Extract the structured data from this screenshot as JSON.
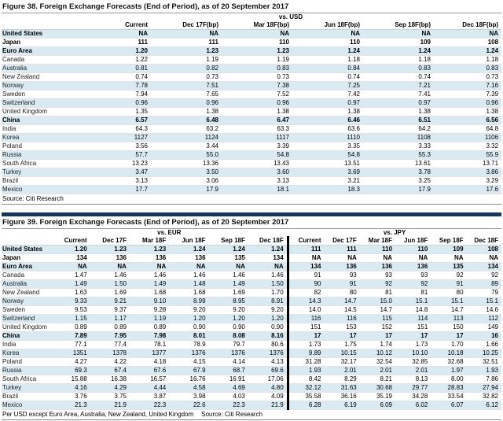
{
  "colors": {
    "stripe_blue": "#d9eaf3",
    "navy_bar": "#17365d"
  },
  "figure38": {
    "title": "Figure 38. Foreign Exchange Forecasts (End of Period), as of 20 September 2017",
    "group_label": "vs. USD",
    "columns": [
      "Current",
      "Dec 17F(bp)",
      "Mar 18F(bp)",
      "Jun 18F(bp)",
      "Sep 18F(bp)",
      "Dec 18F(bp)"
    ],
    "rows": [
      {
        "label": "United States",
        "bold": true,
        "values": [
          "NA",
          "NA",
          "NA",
          "NA",
          "NA",
          "NA"
        ]
      },
      {
        "label": "Japan",
        "bold": true,
        "values": [
          "111",
          "111",
          "110",
          "110",
          "109",
          "108"
        ]
      },
      {
        "label": "Euro Area",
        "bold": true,
        "values": [
          "1.20",
          "1.23",
          "1.23",
          "1.24",
          "1.24",
          "1.24"
        ]
      },
      {
        "label": "Canada",
        "bold": false,
        "values": [
          "1.22",
          "1.19",
          "1.19",
          "1.18",
          "1.18",
          "1.18"
        ]
      },
      {
        "label": "Australia",
        "bold": false,
        "values": [
          "0.81",
          "0.82",
          "0.83",
          "0.84",
          "0.83",
          "0.83"
        ]
      },
      {
        "label": "New Zealand",
        "bold": false,
        "values": [
          "0.74",
          "0.73",
          "0.73",
          "0.74",
          "0.74",
          "0.73"
        ]
      },
      {
        "label": "Norway",
        "bold": false,
        "values": [
          "7.78",
          "7.51",
          "7.38",
          "7.25",
          "7.21",
          "7.16"
        ]
      },
      {
        "label": "Sweden",
        "bold": false,
        "values": [
          "7.94",
          "7.65",
          "7.52",
          "7.42",
          "7.41",
          "7.39"
        ]
      },
      {
        "label": "Switzerland",
        "bold": false,
        "values": [
          "0.96",
          "0.96",
          "0.96",
          "0.97",
          "0.97",
          "0.96"
        ]
      },
      {
        "label": "United Kingdom",
        "bold": false,
        "values": [
          "1.35",
          "1.38",
          "1.38",
          "1.38",
          "1.38",
          "1.38"
        ]
      },
      {
        "label": "China",
        "bold": true,
        "values": [
          "6.57",
          "6.48",
          "6.47",
          "6.46",
          "6.51",
          "6.56"
        ]
      },
      {
        "label": "India",
        "bold": false,
        "values": [
          "64.3",
          "63.2",
          "63.3",
          "63.6",
          "64.2",
          "64.8"
        ]
      },
      {
        "label": "Korea",
        "bold": false,
        "values": [
          "1127",
          "1124",
          "1117",
          "1110",
          "1108",
          "1106"
        ]
      },
      {
        "label": "Poland",
        "bold": false,
        "values": [
          "3.56",
          "3.44",
          "3.39",
          "3.35",
          "3.33",
          "3.32"
        ]
      },
      {
        "label": "Russia",
        "bold": false,
        "values": [
          "57.7",
          "55.0",
          "54.8",
          "54.8",
          "55.3",
          "55.9"
        ]
      },
      {
        "label": "South Africa",
        "bold": false,
        "values": [
          "13.23",
          "13.36",
          "13.43",
          "13.51",
          "13.61",
          "13.71"
        ]
      },
      {
        "label": "Turkey",
        "bold": false,
        "values": [
          "3.47",
          "3.50",
          "3.60",
          "3.69",
          "3.78",
          "3.86"
        ]
      },
      {
        "label": "Brazil",
        "bold": false,
        "values": [
          "3.13",
          "3.06",
          "3.13",
          "3.21",
          "3.25",
          "3.29"
        ]
      },
      {
        "label": "Mexico",
        "bold": false,
        "values": [
          "17.7",
          "17.9",
          "18.1",
          "18.3",
          "17.9",
          "17.6"
        ]
      }
    ],
    "source": "Source: Citi Research"
  },
  "figure39": {
    "title": "Figure 39. Foreign Exchange Forecasts (End of Period), as of 20 September 2017",
    "group_labels": [
      "vs. EUR",
      "vs. JPY"
    ],
    "columns": [
      "Current",
      "Dec 17F",
      "Mar 18F",
      "Jun 18F",
      "Sep 18F",
      "Dec 18F",
      "Current",
      "Dec 17F",
      "Mar 18F",
      "Jun 18F",
      "Sep 18F",
      "Dec 18F"
    ],
    "rows": [
      {
        "label": "United States",
        "bold": true,
        "values": [
          "1.20",
          "1.23",
          "1.23",
          "1.24",
          "1.24",
          "1.24",
          "111",
          "111",
          "110",
          "110",
          "109",
          "108"
        ]
      },
      {
        "label": "Japan",
        "bold": true,
        "values": [
          "134",
          "136",
          "136",
          "136",
          "135",
          "134",
          "NA",
          "NA",
          "NA",
          "NA",
          "NA",
          "NA"
        ]
      },
      {
        "label": "Euro Area",
        "bold": true,
        "values": [
          "NA",
          "NA",
          "NA",
          "NA",
          "NA",
          "NA",
          "134",
          "136",
          "136",
          "136",
          "135",
          "134"
        ]
      },
      {
        "label": "Canada",
        "bold": false,
        "values": [
          "1.47",
          "1.46",
          "1.46",
          "1.46",
          "1.46",
          "1.46",
          "91",
          "93",
          "93",
          "93",
          "92",
          "92"
        ]
      },
      {
        "label": "Australia",
        "bold": false,
        "values": [
          "1.49",
          "1.50",
          "1.49",
          "1.48",
          "1.49",
          "1.50",
          "90",
          "91",
          "92",
          "92",
          "91",
          "89"
        ]
      },
      {
        "label": "New Zealand",
        "bold": false,
        "values": [
          "1.63",
          "1.69",
          "1.68",
          "1.68",
          "1.69",
          "1.70",
          "82",
          "80",
          "81",
          "81",
          "80",
          "79"
        ]
      },
      {
        "label": "Norway",
        "bold": false,
        "values": [
          "9.33",
          "9.21",
          "9.10",
          "8.99",
          "8.95",
          "8.91",
          "14.3",
          "14.7",
          "15.0",
          "15.1",
          "15.1",
          "15.1"
        ]
      },
      {
        "label": "Sweden",
        "bold": false,
        "values": [
          "9.53",
          "9.37",
          "9.28",
          "9.20",
          "9.20",
          "9.20",
          "14.0",
          "14.5",
          "14.7",
          "14.8",
          "14.7",
          "14.6"
        ]
      },
      {
        "label": "Switzerland",
        "bold": false,
        "values": [
          "1.15",
          "1.17",
          "1.19",
          "1.20",
          "1.20",
          "1.20",
          "116",
          "116",
          "115",
          "114",
          "113",
          "112"
        ]
      },
      {
        "label": "United Kingdom",
        "bold": false,
        "values": [
          "0.89",
          "0.89",
          "0.89",
          "0.90",
          "0.90",
          "0.90",
          "151",
          "153",
          "152",
          "151",
          "150",
          "149"
        ]
      },
      {
        "label": "China",
        "bold": true,
        "values": [
          "7.89",
          "7.95",
          "7.98",
          "8.01",
          "8.08",
          "8.16",
          "17",
          "17",
          "17",
          "17",
          "17",
          "16"
        ]
      },
      {
        "label": "India",
        "bold": false,
        "values": [
          "77.1",
          "77.4",
          "78.1",
          "78.9",
          "79.7",
          "80.6",
          "1.73",
          "1.75",
          "1.74",
          "1.73",
          "1.70",
          "1.66"
        ]
      },
      {
        "label": "Korea",
        "bold": false,
        "values": [
          "1351",
          "1378",
          "1377",
          "1376",
          "1376",
          "1376",
          "9.89",
          "10.15",
          "10.12",
          "10.10",
          "10.18",
          "10.25"
        ]
      },
      {
        "label": "Poland",
        "bold": false,
        "values": [
          "4.27",
          "4.22",
          "4.18",
          "4.15",
          "4.14",
          "4.13",
          "31.28",
          "32.17",
          "32.54",
          "32.85",
          "32.68",
          "32.51"
        ]
      },
      {
        "label": "Russia",
        "bold": false,
        "values": [
          "69.3",
          "67.4",
          "67.6",
          "67.9",
          "68.7",
          "69.6",
          "1.93",
          "2.01",
          "2.01",
          "2.01",
          "1.97",
          "1.93"
        ]
      },
      {
        "label": "South Africa",
        "bold": false,
        "values": [
          "15.88",
          "16.38",
          "16.57",
          "16.76",
          "16.91",
          "17.06",
          "8.42",
          "8.29",
          "8.21",
          "8.13",
          "8.00",
          "7.86"
        ]
      },
      {
        "label": "Turkey",
        "bold": false,
        "values": [
          "4.16",
          "4.29",
          "4.44",
          "4.58",
          "4.69",
          "4.80",
          "32.12",
          "31.63",
          "30.68",
          "29.77",
          "28.83",
          "27.94"
        ]
      },
      {
        "label": "Brazil",
        "bold": false,
        "values": [
          "3.76",
          "3.75",
          "3.87",
          "3.98",
          "4.03",
          "4.09",
          "35.58",
          "36.16",
          "35.19",
          "34.28",
          "33.54",
          "32.82"
        ]
      },
      {
        "label": "Mexico",
        "bold": false,
        "values": [
          "21.3",
          "21.9",
          "22.3",
          "22.6",
          "22.3",
          "21.9",
          "6.28",
          "6.19",
          "6.09",
          "6.02",
          "6.07",
          "6.12"
        ]
      }
    ],
    "footnote": "Per USD except Euro Area, Australia, New Zealand, United Kingdom",
    "source": "Source: Citi Research"
  }
}
